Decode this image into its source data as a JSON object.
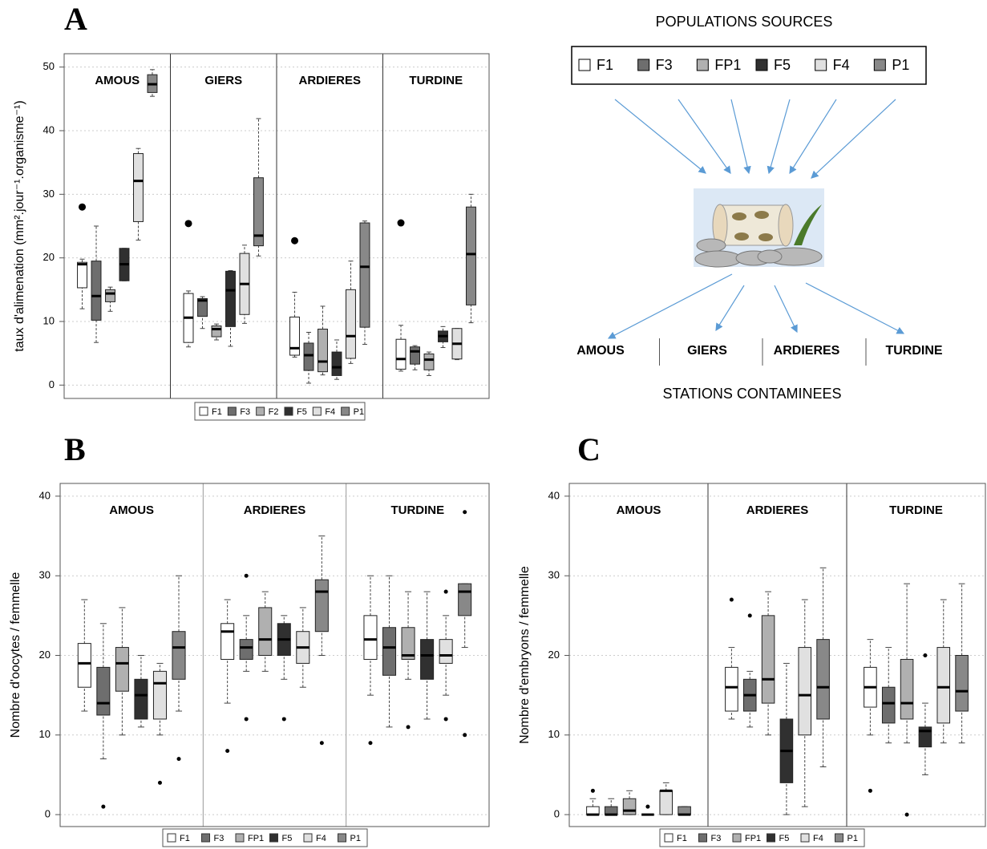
{
  "chart_data": [
    {
      "type": "box",
      "panel_label": "A",
      "ylabel": "taux d'alimenation (mm².jour⁻¹.organisme⁻¹)",
      "categories": [
        "AMOUS",
        "GIERS",
        "ARDIERES",
        "TURDINE"
      ],
      "ylim": [
        -2.1,
        52.1
      ],
      "yticks": [
        0,
        10,
        20,
        30,
        40,
        50
      ],
      "grid": true,
      "legend": "bottom",
      "series": [
        {
          "name": "F1",
          "color": "#ffffff",
          "min": [
            12,
            6,
            4.4,
            2.2
          ],
          "q1": [
            15.3,
            6.7,
            4.7,
            2.5
          ],
          "median": [
            19,
            10.6,
            5.8,
            4.1
          ],
          "q3": [
            19.3,
            14.4,
            10.7,
            7.2
          ],
          "max": [
            19.8,
            14.8,
            14.6,
            9.4
          ],
          "outliers": [
            [
              28
            ],
            [
              25.4
            ],
            [
              22.7
            ],
            [
              25.5
            ]
          ]
        },
        {
          "name": "F3",
          "color": "#6e6e6e",
          "min": [
            6.7,
            8.9,
            0.3,
            2.4
          ],
          "q1": [
            10.2,
            10.8,
            2.3,
            3.3
          ],
          "median": [
            14,
            13.3,
            4.7,
            5.3
          ],
          "q3": [
            19.5,
            13.6,
            6.6,
            6
          ],
          "max": [
            25,
            13.9,
            8.3,
            6.2
          ],
          "outliers": [
            [],
            [],
            [],
            []
          ]
        },
        {
          "name": "F2",
          "color": "#b0b0b0",
          "min": [
            11.6,
            7.1,
            1.6,
            1.5
          ],
          "q1": [
            13.1,
            7.6,
            2.1,
            2.4
          ],
          "median": [
            14.4,
            8.8,
            3.7,
            4
          ],
          "q3": [
            15,
            9.3,
            8.8,
            4.9
          ],
          "max": [
            15.4,
            9.6,
            12.4,
            5.2
          ],
          "outliers": [
            [],
            [],
            [],
            []
          ]
        },
        {
          "name": "F5",
          "color": "#303030",
          "min": [
            16.4,
            6.1,
            0.9,
            5.9
          ],
          "q1": [
            16.4,
            9.2,
            1.5,
            6.8
          ],
          "median": [
            19,
            14.9,
            2.8,
            7.7
          ],
          "q3": [
            21.5,
            17.9,
            5.2,
            8.5
          ],
          "max": [
            21.5,
            18,
            7.1,
            9.2
          ],
          "outliers": [
            [],
            [],
            [],
            []
          ]
        },
        {
          "name": "F4",
          "color": "#e0e0e0",
          "min": [
            22.8,
            9.7,
            3.4,
            4
          ],
          "q1": [
            25.7,
            11.1,
            4.2,
            4.1
          ],
          "median": [
            32.1,
            15.9,
            7.7,
            6.5
          ],
          "q3": [
            36.4,
            20.7,
            15,
            8.9
          ],
          "max": [
            37.2,
            22,
            19.5,
            8.9
          ],
          "outliers": [
            [],
            [],
            [],
            []
          ]
        },
        {
          "name": "P1",
          "color": "#888888",
          "min": [
            45.4,
            20.3,
            6.4,
            9.8
          ],
          "q1": [
            46,
            21.9,
            9.1,
            12.6
          ],
          "median": [
            47.3,
            23.5,
            18.6,
            20.6
          ],
          "q3": [
            48.8,
            32.6,
            25.5,
            28
          ],
          "max": [
            49.6,
            41.9,
            25.8,
            30
          ],
          "outliers": [
            [],
            [],
            [],
            []
          ]
        }
      ]
    },
    {
      "type": "box",
      "panel_label": "B",
      "ylabel": "Nombre d'oocytes / femmelle",
      "categories": [
        "AMOUS",
        "ARDIERES",
        "TURDINE"
      ],
      "ylim": [
        -1.5,
        41.6
      ],
      "yticks": [
        0,
        10,
        20,
        30,
        40
      ],
      "grid": true,
      "legend": "bottom",
      "series": [
        {
          "name": "F1",
          "color": "#ffffff",
          "min": [
            13,
            14,
            15
          ],
          "q1": [
            16,
            19.5,
            19.5
          ],
          "median": [
            19,
            23,
            22
          ],
          "q3": [
            21.5,
            24,
            25
          ],
          "max": [
            27,
            27,
            30
          ],
          "outliers": [
            [],
            [
              8
            ],
            [
              9
            ]
          ]
        },
        {
          "name": "F3",
          "color": "#6e6e6e",
          "min": [
            7,
            18,
            11
          ],
          "q1": [
            12.5,
            19.5,
            17.5
          ],
          "median": [
            14,
            21,
            21
          ],
          "q3": [
            18.5,
            22,
            23.5
          ],
          "max": [
            24,
            25,
            30
          ],
          "outliers": [
            [
              1
            ],
            [
              12,
              30
            ],
            []
          ]
        },
        {
          "name": "FP1",
          "color": "#b0b0b0",
          "min": [
            10,
            18,
            17
          ],
          "q1": [
            15.5,
            20,
            19.5
          ],
          "median": [
            19,
            22,
            20
          ],
          "q3": [
            21,
            26,
            23.5
          ],
          "max": [
            26,
            28,
            28
          ],
          "outliers": [
            [],
            [],
            [
              11
            ]
          ]
        },
        {
          "name": "F5",
          "color": "#303030",
          "min": [
            11,
            17,
            12
          ],
          "q1": [
            12,
            20,
            17
          ],
          "median": [
            15,
            22,
            20
          ],
          "q3": [
            17,
            24,
            22
          ],
          "max": [
            20,
            25,
            28
          ],
          "outliers": [
            [],
            [
              12
            ],
            []
          ]
        },
        {
          "name": "F4",
          "color": "#e0e0e0",
          "min": [
            10,
            16,
            15
          ],
          "q1": [
            12,
            19,
            19
          ],
          "median": [
            16.5,
            21,
            20
          ],
          "q3": [
            18,
            23,
            22
          ],
          "max": [
            19,
            26,
            25
          ],
          "outliers": [
            [
              4
            ],
            [],
            [
              12,
              28
            ]
          ]
        },
        {
          "name": "P1",
          "color": "#888888",
          "min": [
            13,
            20,
            21
          ],
          "q1": [
            17,
            23,
            25
          ],
          "median": [
            21,
            28,
            28
          ],
          "q3": [
            23,
            29.5,
            29
          ],
          "max": [
            30,
            35,
            29
          ],
          "outliers": [
            [
              7
            ],
            [
              9
            ],
            [
              10,
              38
            ]
          ]
        }
      ]
    },
    {
      "type": "box",
      "panel_label": "C",
      "ylabel": "Nombre d'embryons / femmelle",
      "categories": [
        "AMOUS",
        "ARDIERES",
        "TURDINE"
      ],
      "ylim": [
        -1.5,
        41.6
      ],
      "yticks": [
        0,
        10,
        20,
        30,
        40
      ],
      "grid": true,
      "legend": "bottom",
      "series": [
        {
          "name": "F1",
          "color": "#ffffff",
          "min": [
            0,
            12,
            10
          ],
          "q1": [
            0,
            13,
            13.5
          ],
          "median": [
            0,
            16,
            16
          ],
          "q3": [
            1,
            18.5,
            18.5
          ],
          "max": [
            2,
            21,
            22
          ],
          "outliers": [
            [
              3
            ],
            [
              27
            ],
            [
              3
            ]
          ]
        },
        {
          "name": "F3",
          "color": "#6e6e6e",
          "min": [
            0,
            11,
            9
          ],
          "q1": [
            0,
            13,
            11.5
          ],
          "median": [
            0,
            15,
            14
          ],
          "q3": [
            1,
            17,
            16
          ],
          "max": [
            2,
            18,
            21
          ],
          "outliers": [
            [],
            [
              25
            ],
            []
          ]
        },
        {
          "name": "FP1",
          "color": "#b0b0b0",
          "min": [
            0,
            10,
            9
          ],
          "q1": [
            0,
            14,
            12
          ],
          "median": [
            0.5,
            17,
            14
          ],
          "q3": [
            2,
            25,
            19.5
          ],
          "max": [
            3,
            28,
            29
          ],
          "outliers": [
            [],
            [],
            [
              0
            ]
          ]
        },
        {
          "name": "F5",
          "color": "#303030",
          "min": [
            0,
            0,
            5
          ],
          "q1": [
            0,
            4,
            8.5
          ],
          "median": [
            0,
            8,
            10.5
          ],
          "q3": [
            0,
            12,
            11
          ],
          "max": [
            0,
            19,
            14
          ],
          "outliers": [
            [
              1
            ],
            [],
            [
              20
            ]
          ]
        },
        {
          "name": "F4",
          "color": "#e0e0e0",
          "min": [
            0,
            1,
            9
          ],
          "q1": [
            0,
            10,
            11.5
          ],
          "median": [
            3,
            15,
            16
          ],
          "q3": [
            3,
            21,
            21
          ],
          "max": [
            4,
            27,
            27
          ],
          "outliers": [
            [],
            [],
            []
          ]
        },
        {
          "name": "P1",
          "color": "#888888",
          "min": [
            0,
            6,
            9
          ],
          "q1": [
            0,
            12,
            13
          ],
          "median": [
            0,
            16,
            15.5
          ],
          "q3": [
            1,
            22,
            20
          ],
          "max": [
            1,
            31,
            29
          ],
          "outliers": [
            [],
            [],
            []
          ]
        }
      ]
    }
  ],
  "diagram": {
    "title": "POPULATIONS SOURCES",
    "sources": [
      {
        "label": "F1",
        "color": "#ffffff"
      },
      {
        "label": "F3",
        "color": "#6e6e6e"
      },
      {
        "label": "FP1",
        "color": "#b0b0b0"
      },
      {
        "label": "F5",
        "color": "#303030"
      },
      {
        "label": "F4",
        "color": "#e0e0e0"
      },
      {
        "label": "P1",
        "color": "#888888"
      }
    ],
    "stations": [
      "AMOUS",
      "GIERS",
      "ARDIERES",
      "TURDINE"
    ],
    "caption": "STATIONS CONTAMINEES"
  }
}
